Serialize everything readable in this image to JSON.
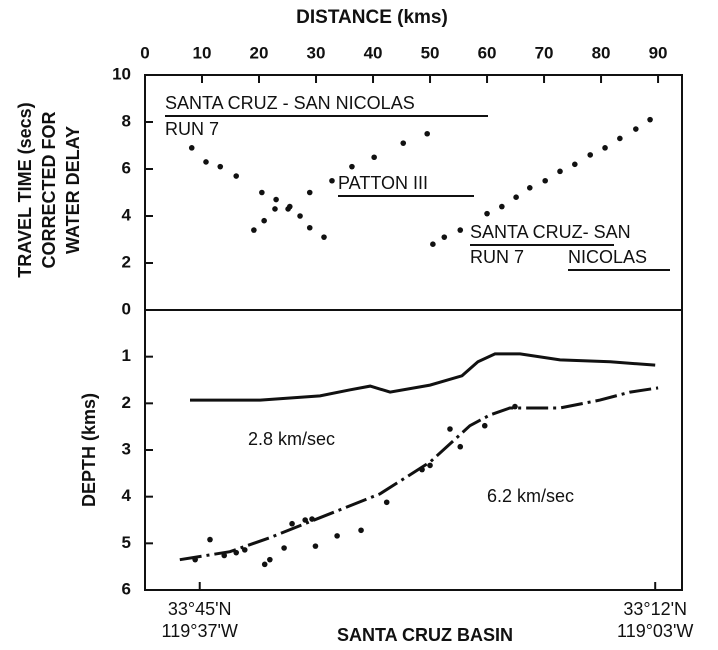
{
  "chart_data": [
    {
      "type": "scatter",
      "xlabel": "DISTANCE (kms)",
      "ylabel": [
        "TRAVEL TIME (secs)",
        "CORRECTED FOR",
        "WATER DELAY"
      ],
      "xlim": [
        0,
        94.2
      ],
      "xticks": [
        0,
        10,
        20,
        30,
        40,
        50,
        60,
        70,
        80,
        90
      ],
      "ylim": [
        0,
        10
      ],
      "yticks": [
        0,
        2,
        4,
        6,
        8,
        10
      ],
      "color": "#111",
      "annotations": [
        "SANTA CRUZ - SAN NICOLAS",
        "RUN 7",
        "PATTON III",
        "SANTA CRUZ- SAN",
        "RUN 7",
        "NICOLAS"
      ],
      "series": [
        {
          "x": [
            8.2,
            10.7,
            13.2,
            16,
            20.5,
            23,
            25.1,
            27.2,
            28.9,
            31.4
          ],
          "values": [
            6.9,
            6.3,
            6.1,
            5.7,
            5.0,
            4.7,
            4.3,
            4.0,
            3.5,
            3.1
          ]
        },
        {
          "x": [
            19.1,
            20.9,
            22.8,
            25.4,
            28.9,
            32.8,
            36.3,
            40.2,
            45.3,
            49.5
          ],
          "values": [
            3.4,
            3.8,
            4.3,
            4.4,
            5.0,
            5.5,
            6.1,
            6.5,
            7.1,
            7.5
          ]
        },
        {
          "x": [
            50.5,
            52.5,
            55.3,
            60,
            62.6,
            65.1,
            67.5,
            70.2,
            72.8,
            75.4,
            78.1,
            80.7,
            83.3,
            86.1,
            88.6
          ],
          "values": [
            2.8,
            3.1,
            3.4,
            4.1,
            4.4,
            4.8,
            5.2,
            5.5,
            5.9,
            6.2,
            6.6,
            6.9,
            7.3,
            7.7,
            8.1
          ]
        }
      ]
    },
    {
      "type": "line",
      "xlabel": "SANTA CRUZ BASIN",
      "ylabel": "DEPTH (kms)",
      "xlim": [
        0,
        94.2
      ],
      "xticks": [
        {
          "value": 9.6,
          "label": [
            "33°45'N",
            "119°37'W"
          ]
        },
        {
          "value": 89.5,
          "label": [
            "33°12'N",
            "119°03'W"
          ]
        }
      ],
      "ylim": [
        0,
        6
      ],
      "yticks": [
        1,
        2,
        3,
        4,
        5,
        6
      ],
      "y_inverted": true,
      "color": "#111",
      "annotations": [
        "2.8 km/sec",
        "6.2 km/sec"
      ],
      "series": [
        {
          "kind": "line",
          "x": [
            7.9,
            20.2,
            30.7,
            36,
            39.5,
            43,
            50,
            55.6,
            58.4,
            61.4,
            65.8,
            72.8,
            81.6,
            89.5
          ],
          "values": [
            1.93,
            1.93,
            1.84,
            1.71,
            1.63,
            1.76,
            1.61,
            1.41,
            1.11,
            0.94,
            0.94,
            1.07,
            1.11,
            1.18
          ]
        },
        {
          "kind": "dashed",
          "x": [
            6.1,
            14.9,
            21.9,
            30.7,
            41.2,
            50,
            57,
            60.5,
            64,
            72.8,
            79.8,
            85.1,
            90
          ],
          "values": [
            5.35,
            5.18,
            4.88,
            4.45,
            3.94,
            3.26,
            2.48,
            2.25,
            2.1,
            2.1,
            1.93,
            1.76,
            1.67
          ]
        },
        {
          "kind": "scatter",
          "x": [
            8.8,
            11.4,
            13.9,
            16,
            17.5,
            21,
            21.9,
            24.4,
            25.8,
            28.1,
            29.3,
            29.9,
            33.7,
            37.9,
            42.4,
            48.6,
            50,
            53.5,
            55.3,
            59.6,
            64.9
          ],
          "values": [
            5.35,
            4.92,
            5.26,
            5.2,
            5.14,
            5.45,
            5.35,
            5.1,
            4.58,
            4.5,
            4.48,
            5.06,
            4.84,
            4.72,
            4.12,
            3.42,
            3.33,
            2.55,
            2.93,
            2.48,
            2.07
          ]
        }
      ]
    }
  ]
}
